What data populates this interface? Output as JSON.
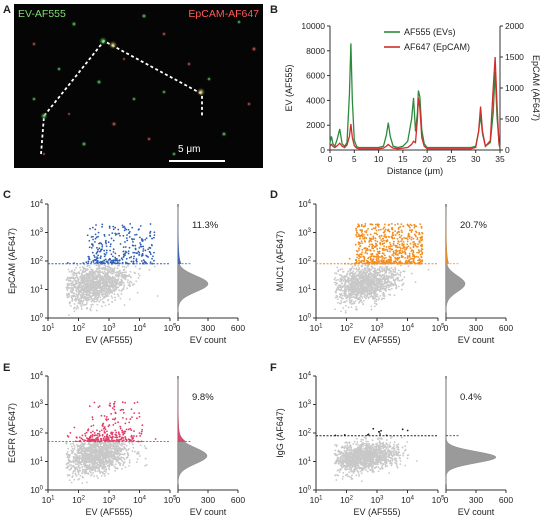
{
  "panel_letters": {
    "a": "A",
    "b": "B",
    "c": "C",
    "d": "D",
    "e": "E",
    "f": "F"
  },
  "micrograph": {
    "label_green": "EV-AF555",
    "label_red": "EpCAM-AF647",
    "scale_label": "5 μm",
    "colors": {
      "green": "#3dd64a",
      "red": "#ff3b3b",
      "yellow": "#ffe45a",
      "background": "#050505"
    }
  },
  "chart_data": [
    {
      "id": "B",
      "type": "line",
      "xlabel": "Distance (μm)",
      "ylabel_left": "EV (AF555)",
      "ylabel_right": "EpCAM (AF647)",
      "xlim": [
        0,
        35
      ],
      "ylim_left": [
        0,
        10000
      ],
      "ylim_right": [
        0,
        2000
      ],
      "x_ticks": [
        0,
        5,
        10,
        15,
        20,
        25,
        30,
        35
      ],
      "y_ticks_left": [
        0,
        2000,
        4000,
        6000,
        8000,
        10000
      ],
      "y_ticks_right": [
        0,
        500,
        1000,
        1500,
        2000
      ],
      "legend": [
        "AF555 (EVs)",
        "AF647 (EpCAM)"
      ],
      "series": [
        {
          "name": "AF555 (EVs)",
          "color": "#2e8b3d",
          "axis": "left",
          "x": [
            0,
            0.3,
            0.6,
            1,
            1.5,
            2,
            2.5,
            3,
            3.5,
            4,
            4.3,
            4.6,
            5,
            5.5,
            6,
            7,
            8,
            9,
            10,
            11,
            11.6,
            12,
            12.4,
            13,
            14,
            15,
            16,
            16.8,
            17.2,
            17.6,
            18,
            18.2,
            18.5,
            18.9,
            19.4,
            20,
            21,
            22,
            23,
            24,
            25,
            26,
            27,
            28,
            29,
            30,
            30.6,
            31,
            31.4,
            32,
            33,
            33.6,
            34,
            34.4,
            34.8,
            35
          ],
          "y": [
            600,
            1100,
            500,
            300,
            900,
            1700,
            500,
            300,
            600,
            4500,
            8600,
            4000,
            800,
            250,
            200,
            200,
            200,
            200,
            200,
            300,
            1200,
            2200,
            1100,
            300,
            200,
            300,
            700,
            2500,
            4200,
            1500,
            3000,
            4800,
            4300,
            1600,
            500,
            200,
            200,
            200,
            200,
            200,
            200,
            200,
            200,
            200,
            200,
            300,
            1500,
            2800,
            1300,
            300,
            600,
            3000,
            6300,
            2600,
            600,
            200
          ]
        },
        {
          "name": "AF647 (EpCAM)",
          "color": "#cf2e2e",
          "axis": "right",
          "x": [
            0,
            0.3,
            0.6,
            1,
            1.5,
            2,
            2.5,
            3,
            3.5,
            4,
            4.3,
            4.6,
            5,
            5.5,
            6,
            7,
            8,
            9,
            10,
            11,
            11.6,
            12,
            12.4,
            13,
            14,
            15,
            16,
            16.8,
            17.2,
            17.6,
            18,
            18.2,
            18.5,
            18.9,
            19.4,
            20,
            21,
            22,
            23,
            24,
            25,
            26,
            27,
            28,
            29,
            30,
            30.6,
            31,
            31.4,
            32,
            33,
            33.6,
            34,
            34.4,
            34.8,
            35
          ],
          "y": [
            60,
            90,
            60,
            40,
            70,
            110,
            60,
            40,
            80,
            220,
            420,
            200,
            70,
            30,
            20,
            20,
            20,
            20,
            20,
            30,
            60,
            90,
            60,
            30,
            20,
            30,
            40,
            90,
            140,
            120,
            500,
            840,
            680,
            200,
            60,
            20,
            20,
            20,
            20,
            20,
            20,
            20,
            20,
            20,
            20,
            40,
            300,
            700,
            300,
            60,
            150,
            1000,
            1500,
            700,
            90,
            30
          ]
        }
      ]
    },
    {
      "id": "C",
      "type": "scatter",
      "xlabel": "EV (AF555)",
      "ylabel": "EpCAM (AF647)",
      "x_scale": "log",
      "y_scale": "log",
      "x_ticks": [
        "10^1",
        "10^2",
        "10^3",
        "10^4",
        "10^5"
      ],
      "y_ticks": [
        "10^0",
        "10^1",
        "10^2",
        "10^3",
        "10^4"
      ],
      "threshold": 80,
      "percent": "11.3%",
      "highlight_color": "#2f5fb5",
      "threshold_color": "#2f5fb5",
      "hist_xlabel": "EV count",
      "hist_ticks": [
        "0",
        "300",
        "600"
      ],
      "hist_peak": 300
    },
    {
      "id": "D",
      "type": "scatter",
      "xlabel": "EV (AF555)",
      "ylabel": "MUC1 (AF647)",
      "x_scale": "log",
      "y_scale": "log",
      "x_ticks": [
        "10^1",
        "10^2",
        "10^3",
        "10^4",
        "10^5"
      ],
      "y_ticks": [
        "10^0",
        "10^1",
        "10^2",
        "10^3",
        "10^4"
      ],
      "threshold": 80,
      "percent": "20.7%",
      "highlight_color": "#f28c1c",
      "threshold_color": "#f28c1c",
      "hist_xlabel": "EV count",
      "hist_ticks": [
        "0",
        "300",
        "600"
      ],
      "hist_peak": 190
    },
    {
      "id": "E",
      "type": "scatter",
      "xlabel": "EV (AF555)",
      "ylabel": "EGFR (AF647)",
      "x_scale": "log",
      "y_scale": "log",
      "x_ticks": [
        "10^1",
        "10^2",
        "10^3",
        "10^4",
        "10^5"
      ],
      "y_ticks": [
        "10^0",
        "10^1",
        "10^2",
        "10^3",
        "10^4"
      ],
      "threshold": 50,
      "percent": "9.8%",
      "highlight_color": "#e03c66",
      "threshold_color": "#e03c66",
      "hist_xlabel": "EV count",
      "hist_ticks": [
        "0",
        "300",
        "600"
      ],
      "hist_peak": 290
    },
    {
      "id": "F",
      "type": "scatter",
      "xlabel": "EV (AF555)",
      "ylabel": "IgG (AF647)",
      "x_scale": "log",
      "y_scale": "log",
      "x_ticks": [
        "10^1",
        "10^2",
        "10^3",
        "10^4",
        "10^5"
      ],
      "y_ticks": [
        "10^0",
        "10^1",
        "10^2",
        "10^3",
        "10^4"
      ],
      "threshold": 80,
      "percent": "0.4%",
      "highlight_color": "#222222",
      "threshold_color": "#222222",
      "hist_xlabel": "EV count",
      "hist_ticks": [
        "0",
        "300",
        "600"
      ],
      "hist_peak": 500
    }
  ]
}
